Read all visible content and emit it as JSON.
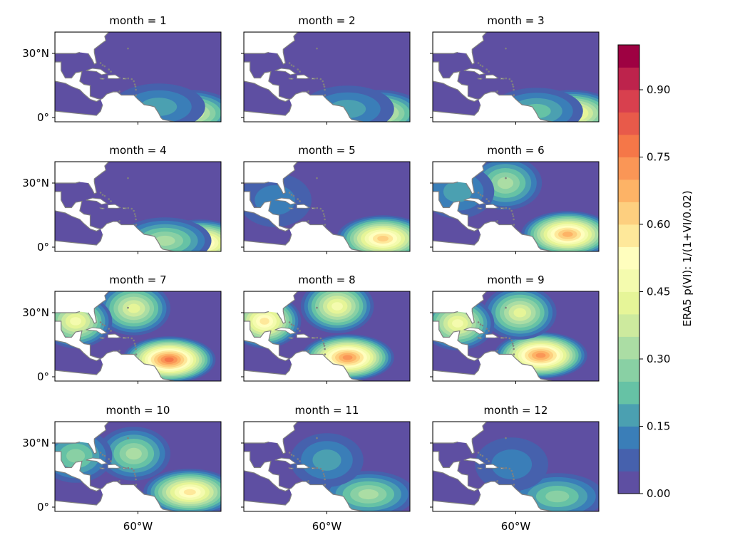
{
  "chart_data": {
    "type": "heatmap",
    "layout": "4x3 small multiples, shared axes",
    "panels": [
      {
        "title": "month = 1",
        "month": 1,
        "hotspots": [
          {
            "lon": -35,
            "lat": 2,
            "value": 0.4
          },
          {
            "lon": -50,
            "lat": 5,
            "value": 0.18
          }
        ]
      },
      {
        "title": "month = 2",
        "month": 2,
        "hotspots": [
          {
            "lon": -35,
            "lat": 2,
            "value": 0.42
          },
          {
            "lon": -50,
            "lat": 4,
            "value": 0.18
          }
        ]
      },
      {
        "title": "month = 3",
        "month": 3,
        "hotspots": [
          {
            "lon": -33,
            "lat": 2,
            "value": 0.52
          },
          {
            "lon": -50,
            "lat": 3,
            "value": 0.2
          }
        ]
      },
      {
        "title": "month = 4",
        "month": 4,
        "hotspots": [
          {
            "lon": -30,
            "lat": 2,
            "value": 0.62
          },
          {
            "lon": -47,
            "lat": 3,
            "value": 0.3
          }
        ]
      },
      {
        "title": "month = 5",
        "month": 5,
        "hotspots": [
          {
            "lon": -33,
            "lat": 4,
            "value": 0.62
          },
          {
            "lon": -85,
            "lat": 22,
            "value": 0.12
          }
        ]
      },
      {
        "title": "month = 6",
        "month": 6,
        "hotspots": [
          {
            "lon": -35,
            "lat": 6,
            "value": 0.68
          },
          {
            "lon": -65,
            "lat": 30,
            "value": 0.3
          },
          {
            "lon": -88,
            "lat": 26,
            "value": 0.18
          }
        ]
      },
      {
        "title": "month = 7",
        "month": 7,
        "hotspots": [
          {
            "lon": -45,
            "lat": 8,
            "value": 0.78
          },
          {
            "lon": -62,
            "lat": 32,
            "value": 0.4
          },
          {
            "lon": -90,
            "lat": 26,
            "value": 0.45
          }
        ]
      },
      {
        "title": "month = 8",
        "month": 8,
        "hotspots": [
          {
            "lon": -50,
            "lat": 9,
            "value": 0.7
          },
          {
            "lon": -55,
            "lat": 33,
            "value": 0.45
          },
          {
            "lon": -90,
            "lat": 26,
            "value": 0.55
          }
        ]
      },
      {
        "title": "month = 9",
        "month": 9,
        "hotspots": [
          {
            "lon": -48,
            "lat": 10,
            "value": 0.72
          },
          {
            "lon": -58,
            "lat": 30,
            "value": 0.4
          },
          {
            "lon": -88,
            "lat": 25,
            "value": 0.45
          }
        ]
      },
      {
        "title": "month = 10",
        "month": 10,
        "hotspots": [
          {
            "lon": -35,
            "lat": 7,
            "value": 0.55
          },
          {
            "lon": -62,
            "lat": 25,
            "value": 0.3
          },
          {
            "lon": -90,
            "lat": 24,
            "value": 0.25
          }
        ]
      },
      {
        "title": "month = 11",
        "month": 11,
        "hotspots": [
          {
            "lon": -40,
            "lat": 6,
            "value": 0.32
          },
          {
            "lon": -60,
            "lat": 22,
            "value": 0.18
          }
        ]
      },
      {
        "title": "month = 12",
        "month": 12,
        "hotspots": [
          {
            "lon": -40,
            "lat": 5,
            "value": 0.25
          },
          {
            "lon": -62,
            "lat": 20,
            "value": 0.12
          }
        ]
      }
    ],
    "x_ticks": [
      {
        "value": -60,
        "label": "60°W"
      }
    ],
    "y_ticks": [
      {
        "value": 30,
        "label": "30°N"
      },
      {
        "value": 0,
        "label": "0°"
      }
    ],
    "xlim": [
      -100,
      -20
    ],
    "ylim": [
      -2,
      40
    ],
    "colorbar": {
      "label": "ERA5 p(VI): 1/(1+VI/0.02)",
      "range": [
        0.0,
        1.0
      ],
      "levels": 20,
      "ticks": [
        {
          "value": 0.0,
          "label": "0.00"
        },
        {
          "value": 0.15,
          "label": "0.15"
        },
        {
          "value": 0.3,
          "label": "0.30"
        },
        {
          "value": 0.45,
          "label": "0.45"
        },
        {
          "value": 0.6,
          "label": "0.60"
        },
        {
          "value": 0.75,
          "label": "0.75"
        },
        {
          "value": 0.9,
          "label": "0.90"
        }
      ],
      "colors": [
        "#5e4fa2",
        "#4661ad",
        "#3a7eb8",
        "#4ba0b1",
        "#66c2a5",
        "#89d0a4",
        "#abdda4",
        "#cdea9e",
        "#e6f598",
        "#f4fbae",
        "#fffebe",
        "#fee89a",
        "#fdcf7f",
        "#fdb366",
        "#fa9656",
        "#f57748",
        "#e85a4a",
        "#d8404e",
        "#bd234c",
        "#9e0142"
      ]
    },
    "land_color": "#ffffff",
    "ocean_base_value": 0.02,
    "coast_color": "#808080"
  }
}
